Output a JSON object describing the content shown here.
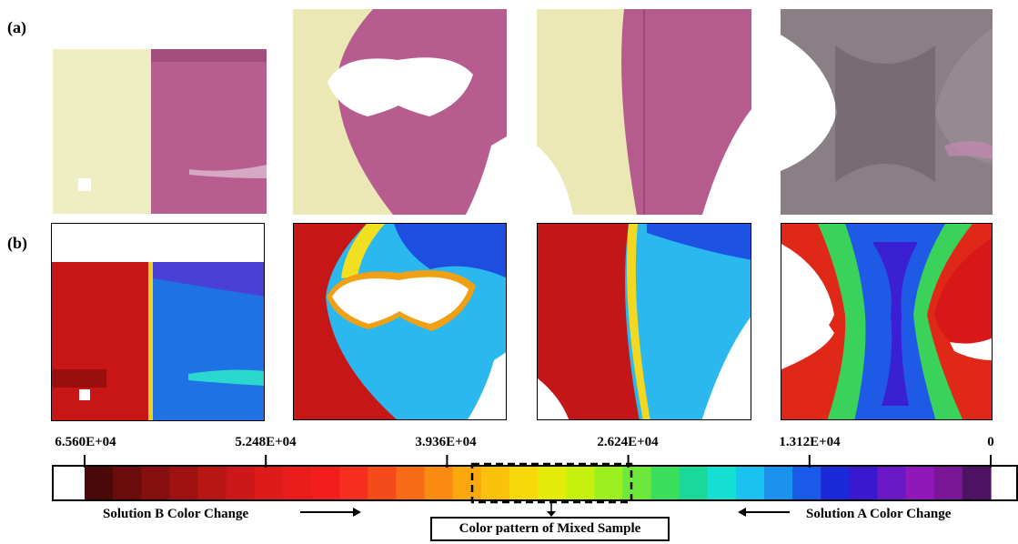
{
  "panel_labels": {
    "a": "(a)",
    "b": "(b)"
  },
  "colorbar": {
    "tick_labels": [
      "6.560E+04",
      "5.248E+04",
      "3.936E+04",
      "2.624E+04",
      "1.312E+04",
      "0"
    ],
    "tick_values": [
      65600,
      52480,
      39360,
      26240,
      13120,
      0
    ],
    "swatches": [
      "#4a0a0a",
      "#6a0c0c",
      "#860f0f",
      "#a01212",
      "#b81515",
      "#cc1818",
      "#dd1b1b",
      "#ea1c1c",
      "#f21e1e",
      "#f52e1e",
      "#f54a1a",
      "#f76a16",
      "#f98a12",
      "#fba80e",
      "#fcc20b",
      "#f7d80a",
      "#e4ea0a",
      "#c6f00e",
      "#9cf020",
      "#6ee83a",
      "#3ade5a",
      "#1ad89a",
      "#16e0d4",
      "#1ac2f0",
      "#1a92ee",
      "#1a5ae8",
      "#1a2ad8",
      "#3a18d0",
      "#6a18c6",
      "#9018b8",
      "#7a1696",
      "#4e1262"
    ]
  },
  "captions": {
    "solution_b": "Solution B Color Change",
    "solution_a": "Solution A Color Change",
    "mixed": "Color pattern of Mixed Sample"
  }
}
